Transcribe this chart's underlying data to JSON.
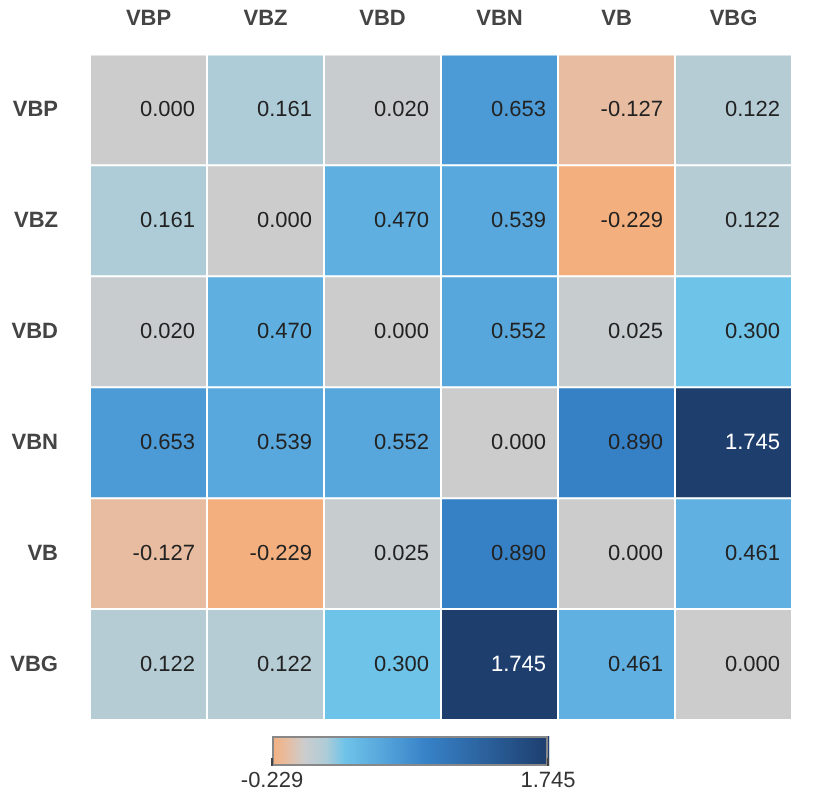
{
  "chart_data": {
    "type": "heatmap",
    "categories": [
      "VBP",
      "VBZ",
      "VBD",
      "VBN",
      "VB",
      "VBG"
    ],
    "y_categories": [
      "VBP",
      "VBZ",
      "VBD",
      "VBN",
      "VB",
      "VBG"
    ],
    "cells": [
      [
        0.0,
        0.161,
        0.02,
        0.653,
        -0.127,
        0.122
      ],
      [
        0.161,
        0.0,
        0.47,
        0.539,
        -0.229,
        0.122
      ],
      [
        0.02,
        0.47,
        0.0,
        0.552,
        0.025,
        0.3
      ],
      [
        0.653,
        0.539,
        0.552,
        0.0,
        0.89,
        1.745
      ],
      [
        -0.127,
        -0.229,
        0.025,
        0.89,
        0.0,
        0.461
      ],
      [
        0.122,
        0.122,
        0.3,
        1.745,
        0.461,
        0.0
      ]
    ],
    "cell_labels": [
      [
        "0.000",
        "0.161",
        "0.020",
        "0.653",
        "-0.127",
        "0.122"
      ],
      [
        "0.161",
        "0.000",
        "0.470",
        "0.539",
        "-0.229",
        "0.122"
      ],
      [
        "0.020",
        "0.470",
        "0.000",
        "0.552",
        "0.025",
        "0.300"
      ],
      [
        "0.653",
        "0.539",
        "0.552",
        "0.000",
        "0.890",
        "1.745"
      ],
      [
        "-0.127",
        "-0.229",
        "0.025",
        "0.890",
        "0.000",
        "0.461"
      ],
      [
        "0.122",
        "0.122",
        "0.300",
        "1.745",
        "0.461",
        "0.000"
      ]
    ],
    "clim": [
      -0.229,
      1.745
    ],
    "cticks": [
      -0.229,
      1.745
    ]
  }
}
